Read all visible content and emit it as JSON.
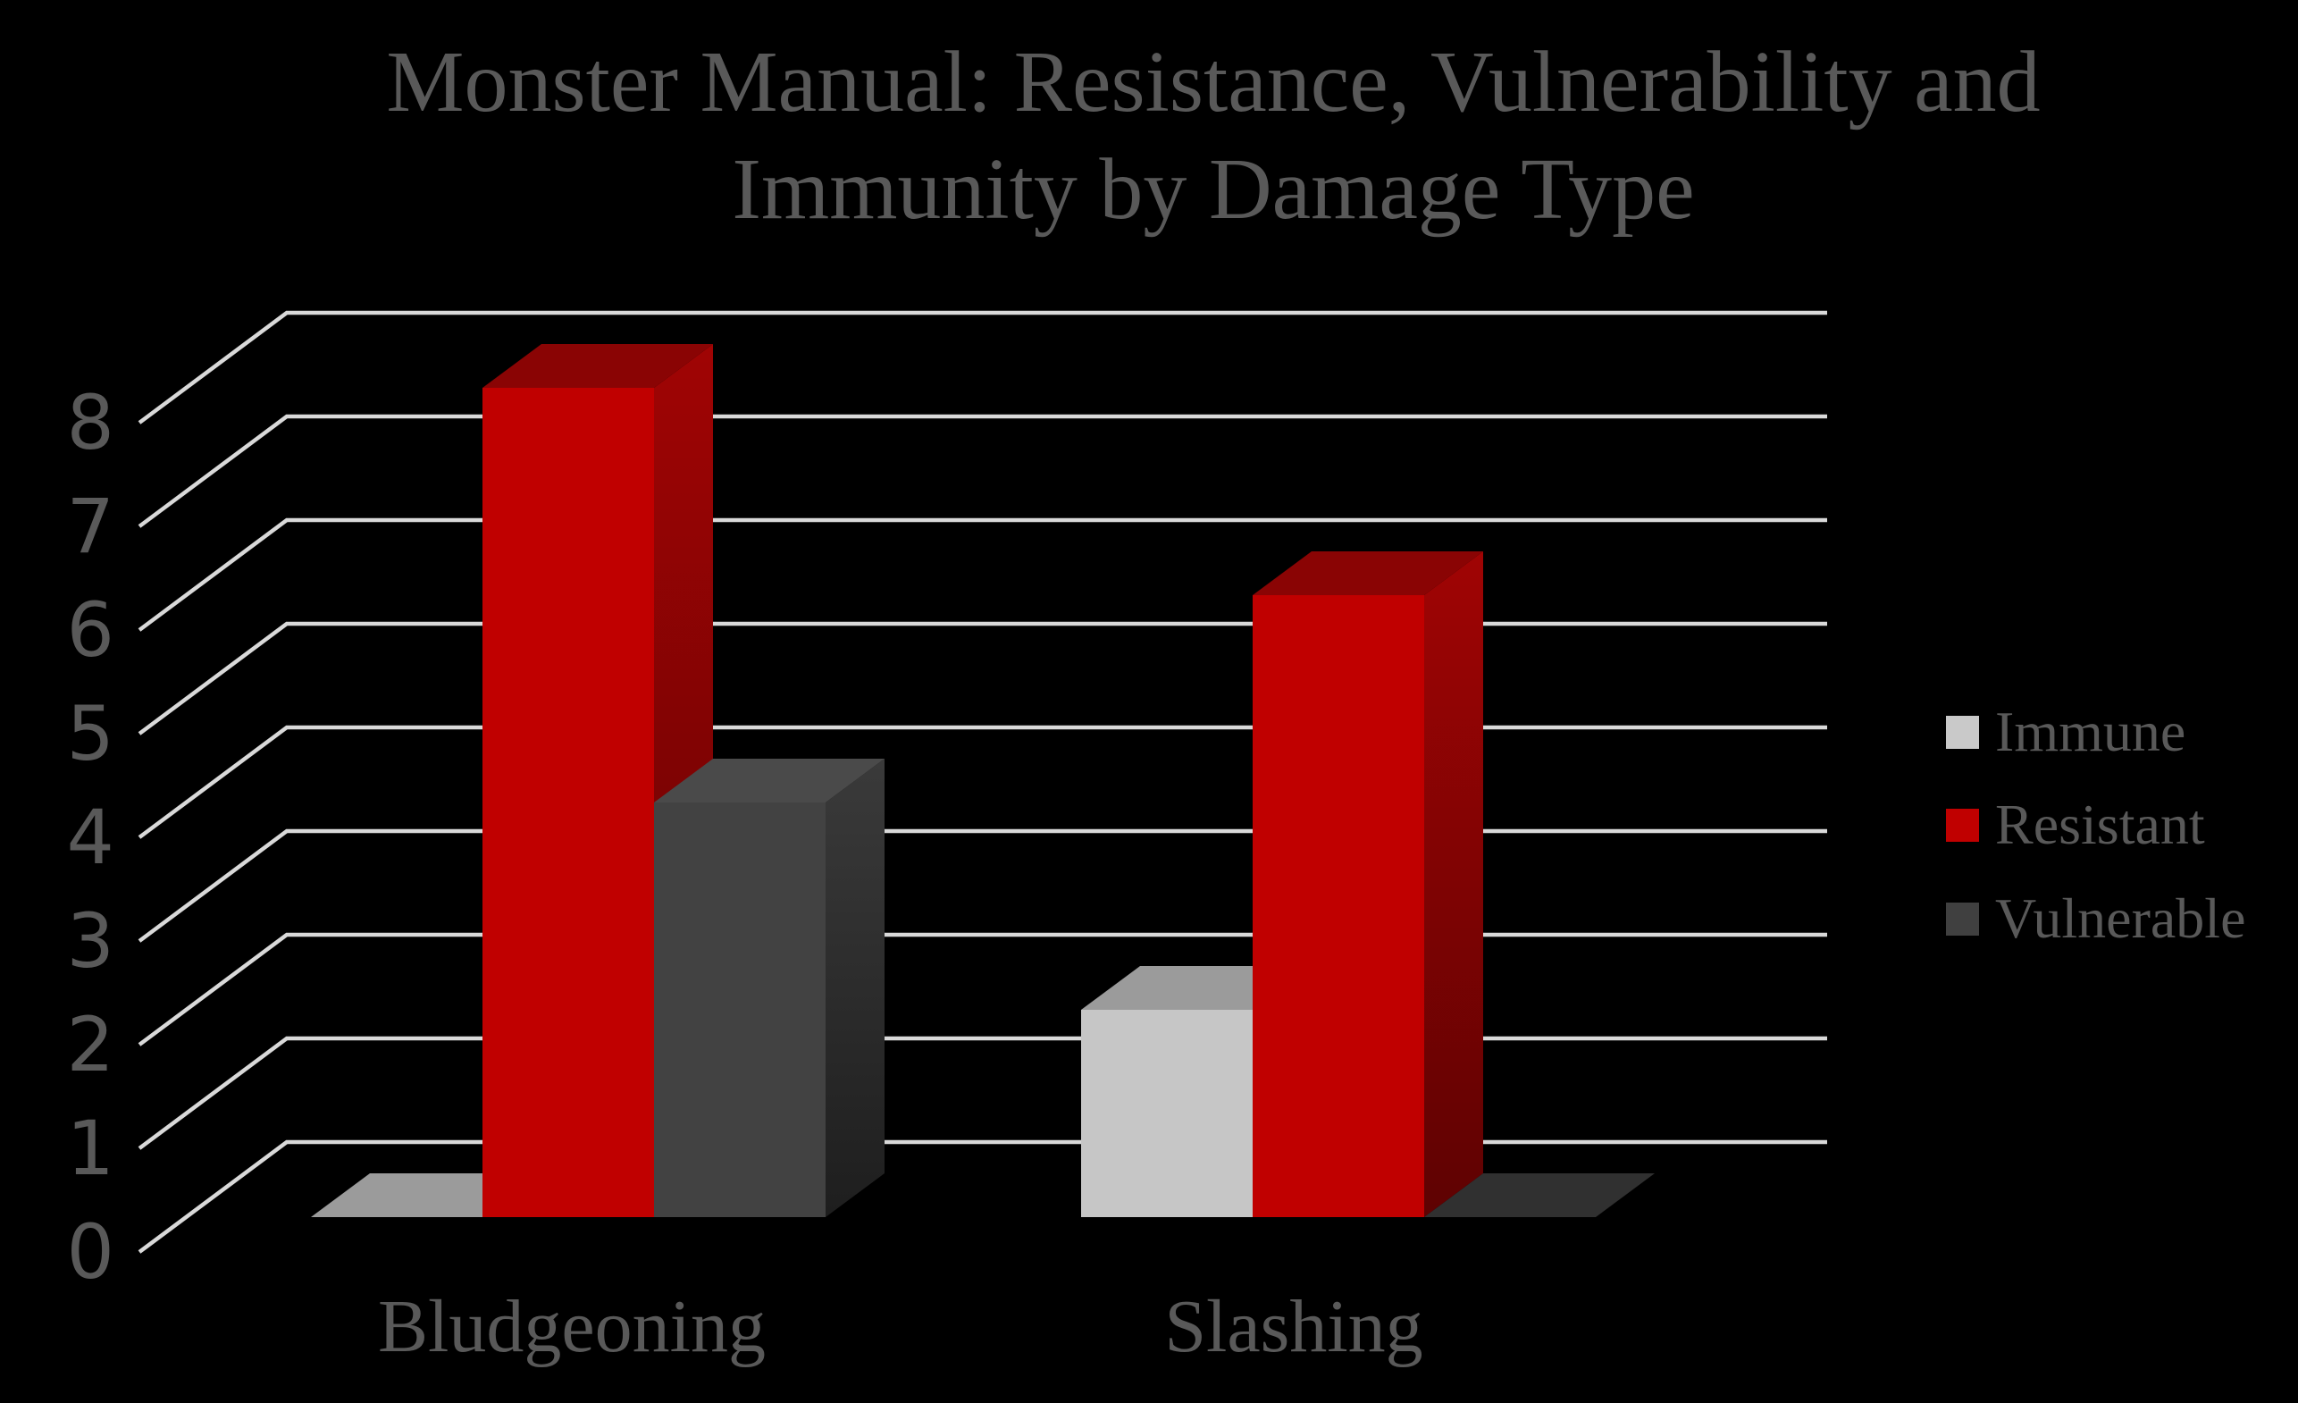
{
  "title": {
    "line1": "Monster Manual: Resistance, Vulnerability and",
    "line2": "Immunity by Damage Type"
  },
  "colors": {
    "background": "#000000",
    "text": "#595959",
    "gridline": "#D9D9D9"
  },
  "y_axis": {
    "ticks": [
      "0",
      "1",
      "2",
      "3",
      "4",
      "5",
      "6",
      "7",
      "8"
    ]
  },
  "chart_data": {
    "type": "bar",
    "projection": "3d-column",
    "title": "Monster Manual: Resistance, Vulnerability and Immunity by Damage Type",
    "categories": [
      "Bludgeoning",
      "Slashing"
    ],
    "series": [
      {
        "name": "Immune",
        "values": [
          0,
          2
        ],
        "color_front": "#C6C6C6",
        "color_top": "#9B9B9B",
        "color_side_light": "#B5B5B5",
        "color_side_dark": "#8F8F8F",
        "color_flat": "#9B9B9B",
        "legend_swatch": "#C9C9C9"
      },
      {
        "name": "Resistant",
        "values": [
          8,
          6
        ],
        "color_front": "#C00000",
        "color_top": "#8A0404",
        "color_side_light": "#A00404",
        "color_side_dark": "#5E0202",
        "color_flat": "#6E0202",
        "legend_swatch": "#C00000"
      },
      {
        "name": "Vulnerable",
        "values": [
          4,
          0
        ],
        "color_front": "#424242",
        "color_top": "#4A4A4A",
        "color_side_light": "#3A3A3A",
        "color_side_dark": "#1E1E1E",
        "color_flat": "#303030",
        "legend_swatch": "#404040"
      }
    ],
    "ylim": [
      0,
      8
    ],
    "grid": true,
    "legend_position": "right",
    "xlabel": "",
    "ylabel": ""
  }
}
